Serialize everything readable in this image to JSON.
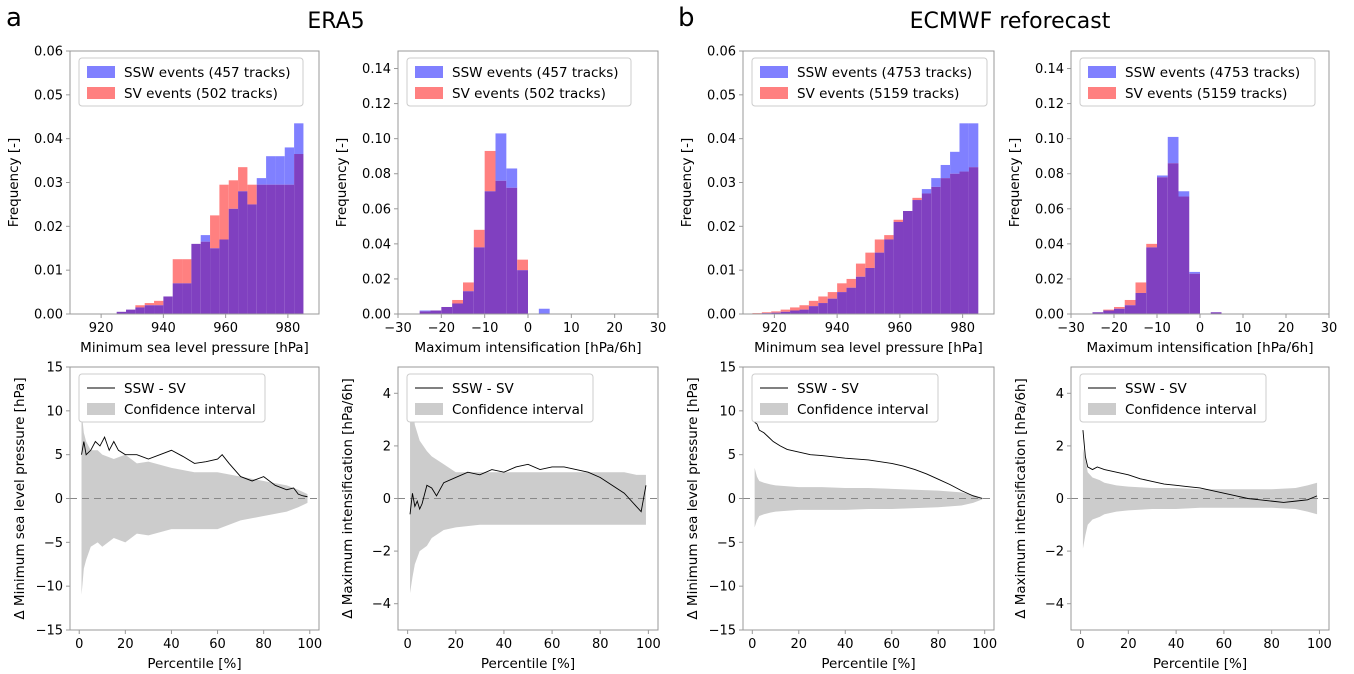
{
  "panel_letters": [
    "a",
    "b"
  ],
  "group_titles": [
    "ERA5",
    "ECMWF reforecast"
  ],
  "colors": {
    "ssw": "#8080ff",
    "sv": "#ff8080",
    "overlap": "#8040c0",
    "ci": "#cccccc",
    "line": "#000000"
  },
  "chart_data": [
    {
      "id": "era5_mslp_hist",
      "type": "bar",
      "group": "ERA5",
      "xlabel": "Minimum sea level pressure [hPa]",
      "ylabel": "Frequency [-]",
      "xlim": [
        910,
        990
      ],
      "ylim": [
        0,
        0.06
      ],
      "xticks": [
        920,
        940,
        960,
        980
      ],
      "yticks": [
        0.0,
        0.01,
        0.02,
        0.03,
        0.04,
        0.05,
        0.06
      ],
      "ytick_format": "2",
      "bin_edges": [
        925,
        928,
        931,
        934,
        937,
        940,
        943,
        946,
        949,
        952,
        955,
        958,
        961,
        964,
        967,
        970,
        973,
        976,
        979,
        982,
        985
      ],
      "series": [
        {
          "name": "SSW events (457 tracks)",
          "values": [
            0.0005,
            0.001,
            0.0015,
            0.002,
            0.002,
            0.004,
            0.007,
            0.007,
            0.016,
            0.018,
            0.015,
            0.017,
            0.024,
            0.028,
            0.025,
            0.031,
            0.036,
            0.036,
            0.038,
            0.0435
          ]
        },
        {
          "name": "SV events (502 tracks)",
          "values": [
            0.0005,
            0.001,
            0.002,
            0.0025,
            0.003,
            0.004,
            0.0125,
            0.0125,
            0.016,
            0.0165,
            0.0225,
            0.0295,
            0.0305,
            0.0335,
            0.0295,
            0.0295,
            0.0295,
            0.0295,
            0.0295,
            0.0365
          ]
        }
      ]
    },
    {
      "id": "era5_int_hist",
      "type": "bar",
      "group": "ERA5",
      "xlabel": "Maximum intensification [hPa/6h]",
      "ylabel": "Frequency [-]",
      "xlim": [
        -30,
        30
      ],
      "ylim": [
        0,
        0.15
      ],
      "xticks": [
        -30,
        -20,
        -10,
        0,
        10,
        20,
        30
      ],
      "yticks": [
        0.0,
        0.02,
        0.04,
        0.06,
        0.08,
        0.1,
        0.12,
        0.14
      ],
      "ytick_format": "2",
      "bin_edges": [
        -25,
        -22.5,
        -20,
        -17.5,
        -15,
        -12.5,
        -10,
        -7.5,
        -5,
        -2.5,
        0,
        2.5,
        5
      ],
      "series": [
        {
          "name": "SSW events (457 tracks)",
          "values": [
            0.002,
            0.002,
            0.004,
            0.006,
            0.013,
            0.038,
            0.07,
            0.103,
            0.083,
            0.025,
            0.0,
            0.003
          ]
        },
        {
          "name": "SV events (502 tracks)",
          "values": [
            0.0015,
            0.002,
            0.004,
            0.008,
            0.018,
            0.048,
            0.093,
            0.076,
            0.072,
            0.031,
            0.0,
            0.0
          ]
        }
      ]
    },
    {
      "id": "era5_mslp_diff",
      "type": "line",
      "group": "ERA5",
      "xlabel": "Percentile [%]",
      "ylabel": "Δ Minimum sea level pressure [hPa]",
      "xlim": [
        -4,
        104
      ],
      "ylim": [
        -15,
        15
      ],
      "xticks": [
        0,
        20,
        40,
        60,
        80,
        100
      ],
      "yticks": [
        -15,
        -10,
        -5,
        0,
        5,
        10,
        15
      ],
      "ytick_format": "0",
      "series": [
        {
          "name": "SSW - SV",
          "x": [
            1,
            2,
            3,
            5,
            7,
            9,
            11,
            13,
            15,
            17,
            20,
            25,
            30,
            35,
            40,
            45,
            50,
            55,
            60,
            62,
            65,
            70,
            75,
            80,
            85,
            90,
            93,
            95,
            97,
            99
          ],
          "y": [
            5.0,
            6.5,
            5.0,
            5.5,
            6.5,
            6.0,
            7.0,
            5.5,
            6.5,
            5.5,
            5.0,
            5.0,
            4.5,
            5.0,
            5.5,
            4.8,
            4.0,
            4.2,
            4.5,
            5.0,
            4.0,
            2.5,
            2.0,
            2.5,
            1.5,
            1.0,
            1.2,
            0.5,
            0.3,
            0.2
          ]
        },
        {
          "name": "Confidence interval",
          "x": [
            1,
            2,
            3,
            5,
            8,
            10,
            15,
            20,
            25,
            30,
            40,
            50,
            60,
            70,
            80,
            90,
            95,
            99
          ],
          "upper": [
            10.0,
            7.5,
            6.5,
            5.5,
            5.5,
            5.0,
            4.5,
            5.0,
            4.0,
            4.2,
            3.5,
            3.0,
            3.0,
            2.5,
            2.0,
            1.5,
            1.0,
            0.5
          ],
          "lower": [
            -11.0,
            -8.0,
            -7.0,
            -5.5,
            -5.0,
            -5.5,
            -4.5,
            -5.0,
            -4.0,
            -4.2,
            -3.5,
            -3.5,
            -3.5,
            -2.5,
            -2.0,
            -1.5,
            -1.0,
            -0.5
          ]
        }
      ],
      "zero_line": true
    },
    {
      "id": "era5_int_diff",
      "type": "line",
      "group": "ERA5",
      "xlabel": "Percentile [%]",
      "ylabel": "Δ Maximum intensification [hPa/6h]",
      "xlim": [
        -4,
        104
      ],
      "ylim": [
        -5,
        5
      ],
      "xticks": [
        0,
        20,
        40,
        60,
        80,
        100
      ],
      "yticks": [
        -4,
        -2,
        0,
        2,
        4
      ],
      "ytick_format": "0",
      "series": [
        {
          "name": "SSW - SV",
          "x": [
            1,
            2,
            3,
            4,
            5,
            6,
            8,
            10,
            12,
            15,
            20,
            25,
            30,
            35,
            40,
            45,
            50,
            55,
            60,
            65,
            70,
            75,
            80,
            85,
            90,
            92,
            95,
            97,
            99
          ],
          "y": [
            -0.6,
            0.2,
            -0.3,
            -0.1,
            -0.4,
            -0.2,
            0.5,
            0.4,
            0.1,
            0.6,
            0.8,
            1.0,
            0.9,
            1.1,
            1.0,
            1.2,
            1.3,
            1.1,
            1.2,
            1.2,
            1.1,
            1.0,
            0.8,
            0.5,
            0.2,
            0.0,
            -0.3,
            -0.5,
            0.5
          ]
        },
        {
          "name": "Confidence interval",
          "x": [
            1,
            2,
            3,
            5,
            8,
            10,
            15,
            20,
            30,
            40,
            50,
            60,
            70,
            80,
            90,
            95,
            99
          ],
          "upper": [
            3.6,
            3.5,
            2.8,
            2.2,
            1.8,
            1.6,
            1.3,
            1.0,
            1.0,
            1.0,
            1.0,
            1.0,
            1.0,
            1.0,
            1.0,
            0.9,
            0.9
          ],
          "lower": [
            -3.6,
            -3.0,
            -2.5,
            -2.0,
            -1.8,
            -1.5,
            -1.2,
            -1.1,
            -1.0,
            -1.0,
            -1.0,
            -1.0,
            -1.0,
            -1.0,
            -1.0,
            -1.0,
            -1.0
          ]
        }
      ],
      "zero_line": true
    },
    {
      "id": "ecmwf_mslp_hist",
      "type": "bar",
      "group": "ECMWF reforecast",
      "xlabel": "Minimum sea level pressure [hPa]",
      "ylabel": "Frequency [-]",
      "xlim": [
        910,
        990
      ],
      "ylim": [
        0,
        0.06
      ],
      "xticks": [
        920,
        940,
        960,
        980
      ],
      "yticks": [
        0.0,
        0.01,
        0.02,
        0.03,
        0.04,
        0.05,
        0.06
      ],
      "ytick_format": "2",
      "bin_edges": [
        913,
        916,
        919,
        922,
        925,
        928,
        931,
        934,
        937,
        940,
        943,
        946,
        949,
        952,
        955,
        958,
        961,
        964,
        967,
        970,
        973,
        976,
        979,
        982,
        985
      ],
      "series": [
        {
          "name": "SSW events (4753 tracks)",
          "values": [
            0.0001,
            0.0002,
            0.0003,
            0.0005,
            0.0008,
            0.001,
            0.0018,
            0.0025,
            0.0035,
            0.005,
            0.006,
            0.0085,
            0.0105,
            0.014,
            0.017,
            0.021,
            0.0235,
            0.026,
            0.0285,
            0.031,
            0.034,
            0.037,
            0.0435,
            0.0435
          ]
        },
        {
          "name": "SV events (5159 tracks)",
          "values": [
            0.0002,
            0.0004,
            0.0006,
            0.001,
            0.0015,
            0.002,
            0.003,
            0.004,
            0.005,
            0.007,
            0.008,
            0.0115,
            0.014,
            0.017,
            0.018,
            0.0215,
            0.0235,
            0.0265,
            0.0275,
            0.029,
            0.031,
            0.032,
            0.0325,
            0.0335
          ]
        }
      ]
    },
    {
      "id": "ecmwf_int_hist",
      "type": "bar",
      "group": "ECMWF reforecast",
      "xlabel": "Maximum intensification [hPa/6h]",
      "ylabel": "Frequency [-]",
      "xlim": [
        -30,
        30
      ],
      "ylim": [
        0,
        0.15
      ],
      "xticks": [
        -30,
        -20,
        -10,
        0,
        10,
        20,
        30
      ],
      "yticks": [
        0.0,
        0.02,
        0.04,
        0.06,
        0.08,
        0.1,
        0.12,
        0.14
      ],
      "ytick_format": "2",
      "bin_edges": [
        -25,
        -22.5,
        -20,
        -17.5,
        -15,
        -12.5,
        -10,
        -7.5,
        -5,
        -2.5,
        0,
        2.5,
        5
      ],
      "series": [
        {
          "name": "SSW events (4753 tracks)",
          "values": [
            0.001,
            0.002,
            0.003,
            0.005,
            0.012,
            0.038,
            0.079,
            0.101,
            0.07,
            0.024,
            0.0,
            0.001
          ]
        },
        {
          "name": "SV events (5159 tracks)",
          "values": [
            0.001,
            0.0025,
            0.004,
            0.008,
            0.018,
            0.04,
            0.078,
            0.086,
            0.067,
            0.023,
            0.0,
            0.001
          ]
        }
      ]
    },
    {
      "id": "ecmwf_mslp_diff",
      "type": "line",
      "group": "ECMWF reforecast",
      "xlabel": "Percentile [%]",
      "ylabel": "Δ Minimum sea level pressure [hPa]",
      "xlim": [
        -4,
        104
      ],
      "ylim": [
        -15,
        15
      ],
      "xticks": [
        0,
        20,
        40,
        60,
        80,
        100
      ],
      "yticks": [
        -15,
        -10,
        -5,
        0,
        5,
        10,
        15
      ],
      "ytick_format": "0",
      "series": [
        {
          "name": "SSW - SV",
          "x": [
            1,
            2,
            3,
            5,
            7,
            9,
            12,
            15,
            20,
            25,
            30,
            40,
            50,
            60,
            65,
            70,
            75,
            80,
            85,
            90,
            95,
            99
          ],
          "y": [
            8.7,
            8.5,
            7.8,
            7.5,
            7.0,
            6.5,
            6.0,
            5.6,
            5.3,
            5.0,
            4.9,
            4.6,
            4.4,
            4.0,
            3.7,
            3.3,
            2.8,
            2.2,
            1.6,
            0.9,
            0.3,
            0.0
          ]
        },
        {
          "name": "Confidence interval",
          "x": [
            1,
            2,
            3,
            5,
            8,
            10,
            15,
            20,
            30,
            40,
            50,
            60,
            70,
            80,
            90,
            95,
            99
          ],
          "upper": [
            3.5,
            2.5,
            2.0,
            1.8,
            1.6,
            1.5,
            1.4,
            1.3,
            1.3,
            1.2,
            1.2,
            1.1,
            1.0,
            0.9,
            0.7,
            0.4,
            0.1
          ],
          "lower": [
            -3.3,
            -2.5,
            -2.0,
            -1.8,
            -1.6,
            -1.5,
            -1.4,
            -1.3,
            -1.3,
            -1.3,
            -1.2,
            -1.2,
            -1.1,
            -1.0,
            -0.8,
            -0.5,
            -0.1
          ]
        }
      ],
      "zero_line": true
    },
    {
      "id": "ecmwf_int_diff",
      "type": "line",
      "group": "ECMWF reforecast",
      "xlabel": "Percentile [%]",
      "ylabel": "Δ Maximum intensification [hPa/6h]",
      "xlim": [
        -4,
        104
      ],
      "ylim": [
        -5,
        5
      ],
      "xticks": [
        0,
        20,
        40,
        60,
        80,
        100
      ],
      "yticks": [
        -4,
        -2,
        0,
        2,
        4
      ],
      "ytick_format": "0",
      "series": [
        {
          "name": "SSW - SV",
          "x": [
            1,
            2,
            3,
            5,
            7,
            10,
            15,
            20,
            25,
            30,
            35,
            40,
            45,
            50,
            55,
            60,
            65,
            70,
            75,
            80,
            85,
            90,
            95,
            99
          ],
          "y": [
            2.6,
            1.6,
            1.2,
            1.1,
            1.2,
            1.1,
            1.0,
            0.9,
            0.75,
            0.65,
            0.55,
            0.5,
            0.45,
            0.4,
            0.3,
            0.2,
            0.1,
            0.0,
            -0.05,
            -0.1,
            -0.15,
            -0.1,
            -0.05,
            0.1
          ]
        },
        {
          "name": "Confidence interval",
          "x": [
            1,
            2,
            3,
            5,
            8,
            10,
            15,
            20,
            30,
            40,
            50,
            60,
            70,
            80,
            90,
            95,
            99
          ],
          "upper": [
            1.9,
            1.5,
            1.0,
            0.8,
            0.7,
            0.6,
            0.5,
            0.45,
            0.4,
            0.4,
            0.35,
            0.35,
            0.35,
            0.35,
            0.4,
            0.5,
            0.6
          ],
          "lower": [
            -1.9,
            -1.4,
            -1.0,
            -0.8,
            -0.7,
            -0.6,
            -0.5,
            -0.45,
            -0.4,
            -0.4,
            -0.35,
            -0.35,
            -0.35,
            -0.35,
            -0.4,
            -0.5,
            -0.6
          ]
        }
      ],
      "zero_line": true
    }
  ]
}
